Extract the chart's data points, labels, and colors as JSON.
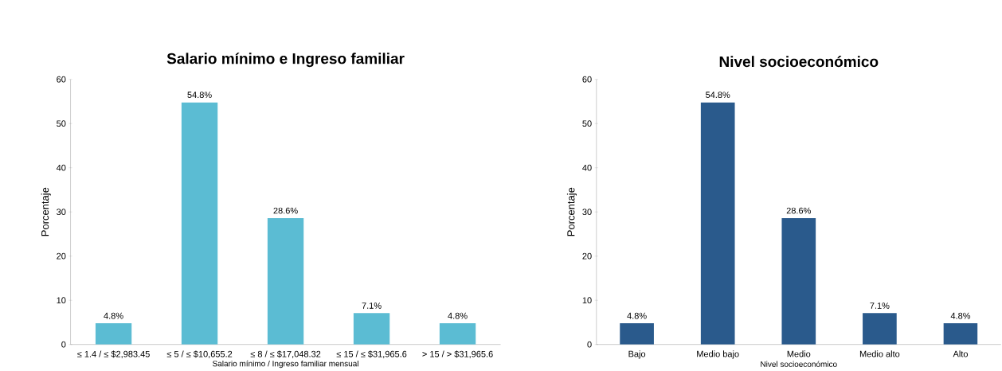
{
  "chart_data": [
    {
      "type": "bar",
      "title": "Salario mínimo e Ingreso familiar",
      "xlabel": "Salario mínimo / Ingreso familiar mensual",
      "ylabel": "Porcentaje",
      "categories": [
        "≤ 1.4 / ≤ $2,983.45",
        "≤ 5 / ≤ $10,655.2",
        "≤ 8 / ≤ $17,048.32",
        "≤ 15 / ≤ $31,965.6",
        "> 15 / > $31,965.6"
      ],
      "values": [
        4.8,
        54.8,
        28.6,
        7.1,
        4.8
      ],
      "value_labels": [
        "4.8%",
        "54.8%",
        "28.6%",
        "7.1%",
        "4.8%"
      ],
      "color": "#5bbcd3",
      "ylim": [
        0,
        60
      ],
      "yticks": [
        0,
        10,
        20,
        30,
        40,
        50,
        60
      ]
    },
    {
      "type": "bar",
      "title": "Nivel socioeconómico",
      "xlabel": "Nivel socioeconómico",
      "ylabel": "Porcentaje",
      "categories": [
        "Bajo",
        "Medio bajo",
        "Medio",
        "Medio alto",
        "Alto"
      ],
      "values": [
        4.8,
        54.8,
        28.6,
        7.1,
        4.8
      ],
      "value_labels": [
        "4.8%",
        "54.8%",
        "28.6%",
        "7.1%",
        "4.8%"
      ],
      "color": "#2a5a8c",
      "ylim": [
        0,
        60
      ],
      "yticks": [
        0,
        10,
        20,
        30,
        40,
        50,
        60
      ]
    }
  ]
}
